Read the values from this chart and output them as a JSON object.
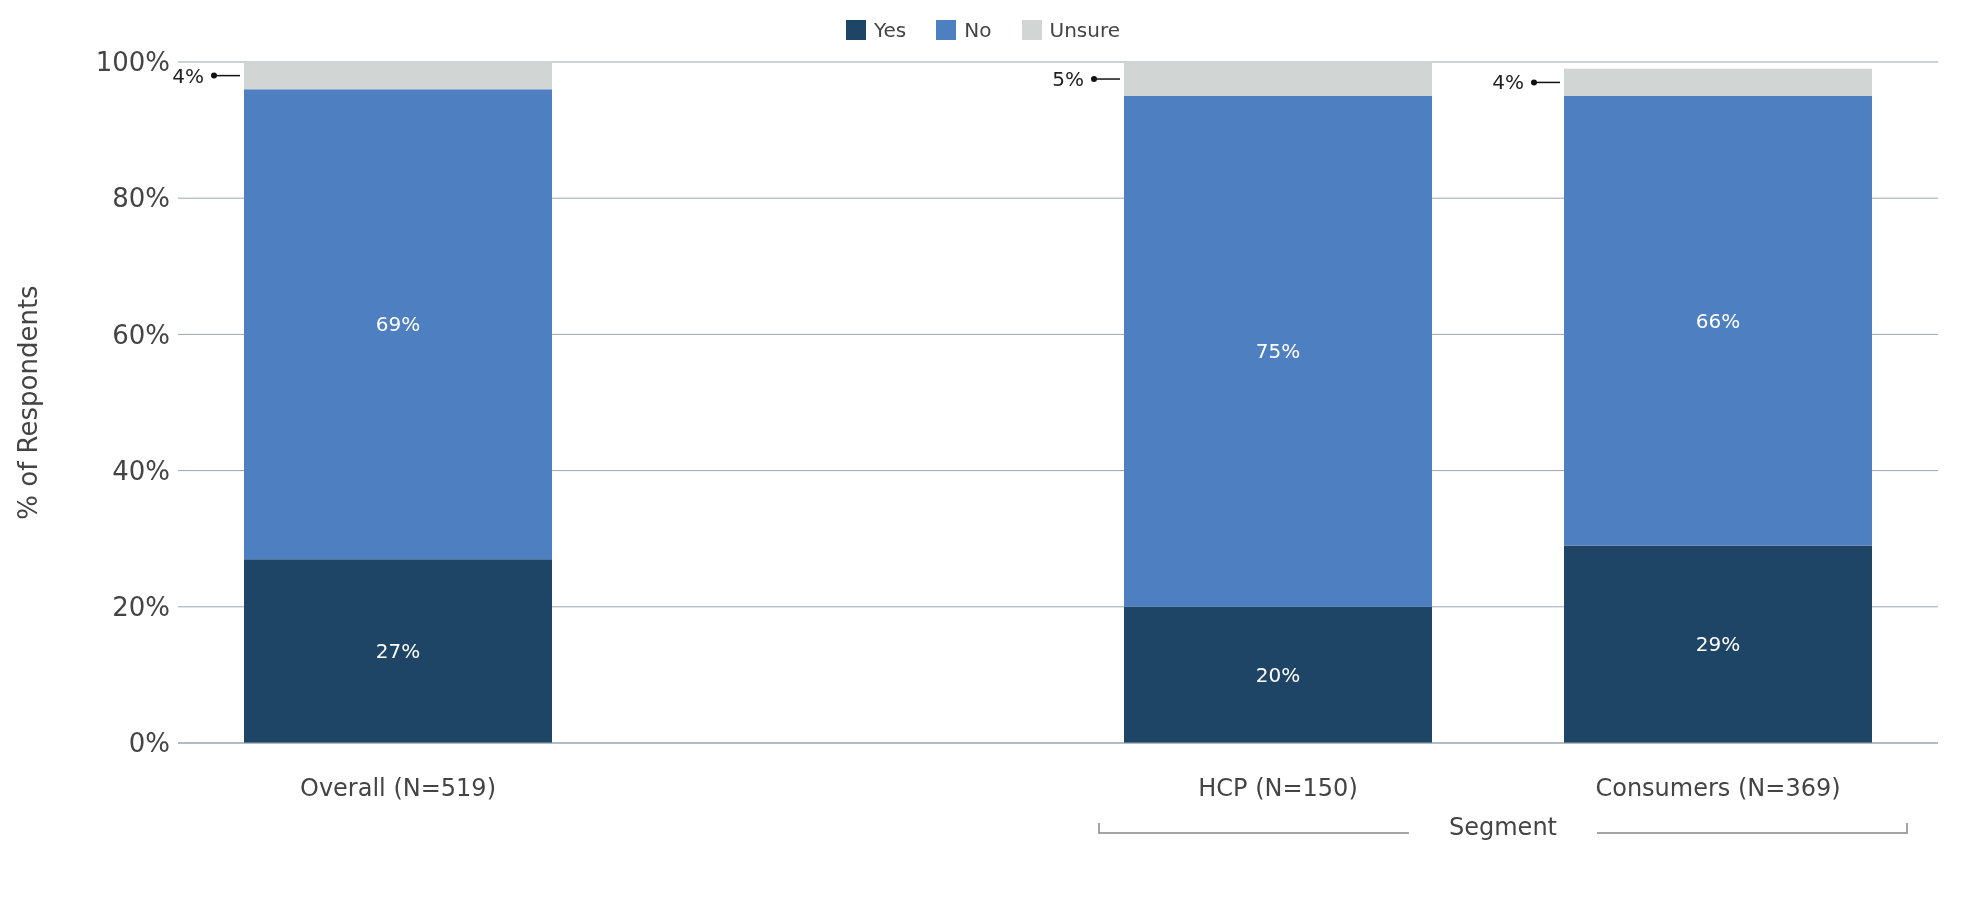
{
  "chart_data": {
    "type": "bar",
    "stacked": true,
    "categories": [
      "Overall (N=519)",
      null,
      "HCP (N=150)",
      "Consumers (N=369)"
    ],
    "series": [
      {
        "name": "Yes",
        "color": "#1f4566",
        "values": [
          27,
          null,
          20,
          29
        ],
        "value_labels": [
          "27%",
          null,
          "20%",
          "29%"
        ]
      },
      {
        "name": "No",
        "color": "#4d7fc1",
        "values": [
          69,
          null,
          75,
          66
        ],
        "value_labels": [
          "69%",
          null,
          "75%",
          "66%"
        ]
      },
      {
        "name": "Unsure",
        "color": "#d1d5d4",
        "values": [
          4,
          null,
          5,
          4
        ],
        "value_labels": [
          "4%",
          null,
          "5%",
          "4%"
        ]
      }
    ],
    "ylabel": "% of Respondents",
    "ylim": [
      0,
      100
    ],
    "yticks": [
      {
        "value": 0,
        "label": "0%"
      },
      {
        "value": 20,
        "label": "20%"
      },
      {
        "value": 40,
        "label": "40%"
      },
      {
        "value": 60,
        "label": "60%"
      },
      {
        "value": 80,
        "label": "80%"
      },
      {
        "value": 100,
        "label": "100%"
      }
    ],
    "grid": "y",
    "legend": "top",
    "annotations": [
      "Segment"
    ]
  }
}
